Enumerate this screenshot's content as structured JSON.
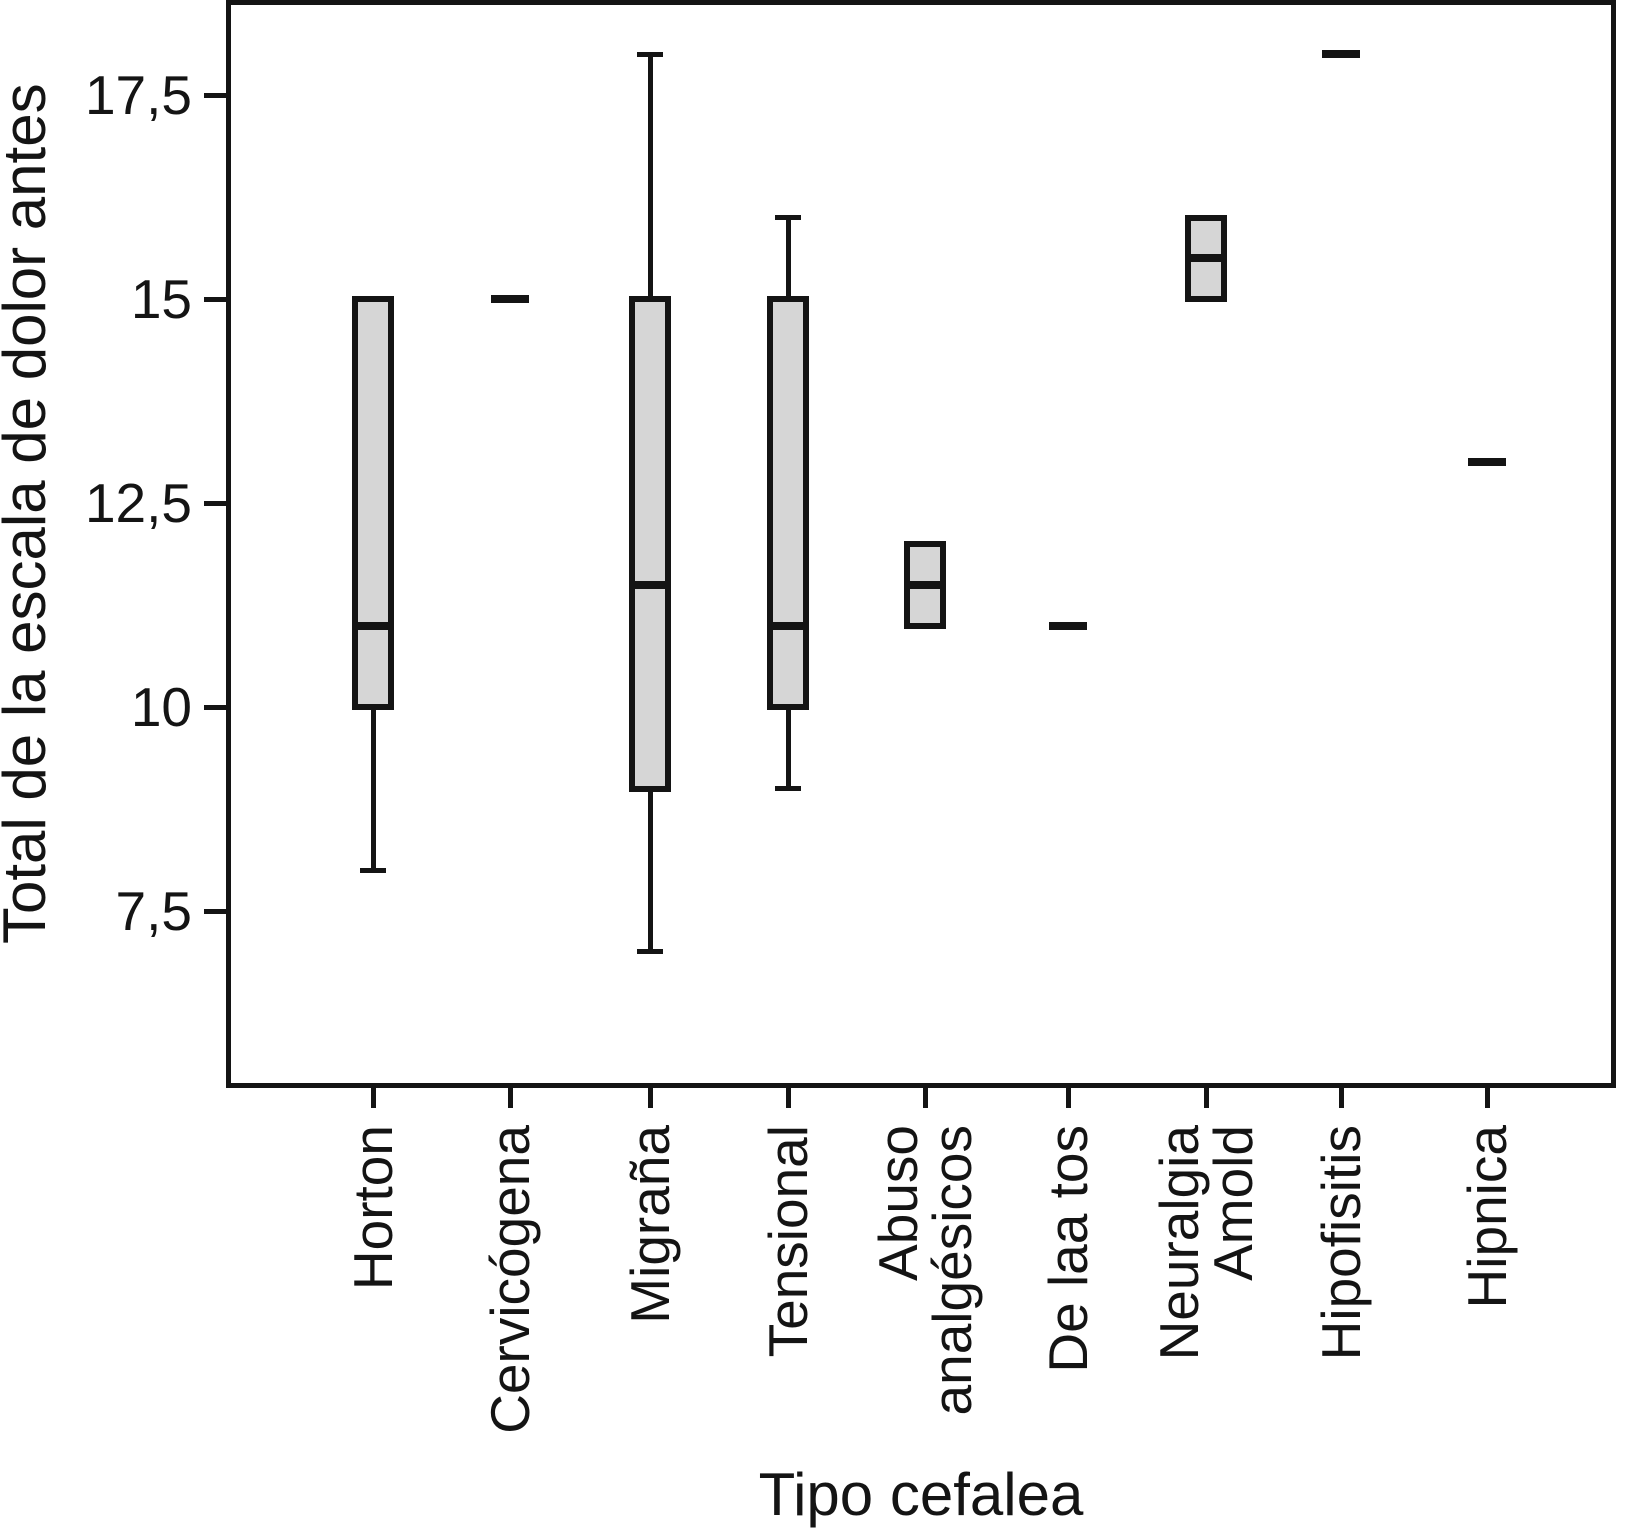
{
  "chart_data": {
    "type": "boxplot",
    "title": "",
    "xlabel": "Tipo cefalea",
    "ylabel": "Total de la escala de dolor antes",
    "ylim": [
      5.37,
      18.63
    ],
    "grid": false,
    "legend": null,
    "y_ticks": [
      {
        "value": 17.5,
        "label": "17,5"
      },
      {
        "value": 15,
        "label": "15"
      },
      {
        "value": 12.5,
        "label": "12,5"
      },
      {
        "value": 10,
        "label": "10"
      },
      {
        "value": 7.5,
        "label": "7,5"
      }
    ],
    "categories": [
      {
        "label_lines": [
          "Horton"
        ]
      },
      {
        "label_lines": [
          "Cervicógena"
        ]
      },
      {
        "label_lines": [
          "Migraña"
        ]
      },
      {
        "label_lines": [
          "Tensional"
        ]
      },
      {
        "label_lines": [
          "Abuso",
          "analgésicos"
        ]
      },
      {
        "label_lines": [
          "De laa tos"
        ]
      },
      {
        "label_lines": [
          "Neuralgia",
          "Amold"
        ]
      },
      {
        "label_lines": [
          "Hipofisitis"
        ]
      },
      {
        "label_lines": [
          "Hipnica"
        ]
      }
    ],
    "series": [
      {
        "category": "Horton",
        "q1": 10,
        "median": 11,
        "q3": 15,
        "whisker_low": 8,
        "whisker_high": null
      },
      {
        "category": "Cervicógena",
        "value": 15
      },
      {
        "category": "Migraña",
        "q1": 9,
        "median": 11.5,
        "q3": 15,
        "whisker_low": 7,
        "whisker_high": 18
      },
      {
        "category": "Tensional",
        "q1": 10,
        "median": 11,
        "q3": 15,
        "whisker_low": 9,
        "whisker_high": 16
      },
      {
        "category": "Abuso analgésicos",
        "q1": 11,
        "median": 11.5,
        "q3": 12,
        "whisker_low": null,
        "whisker_high": null
      },
      {
        "category": "De laa tos",
        "value": 11
      },
      {
        "category": "Neuralgia Amold",
        "q1": 15,
        "median": 15.5,
        "q3": 16,
        "whisker_low": null,
        "whisker_high": null
      },
      {
        "category": "Hipofisitis",
        "value": 18
      },
      {
        "category": "Hipnica",
        "value": 13
      }
    ],
    "colors": {
      "box_fill": "#d6d6d6",
      "line": "#141414",
      "background": "#ffffff"
    }
  }
}
